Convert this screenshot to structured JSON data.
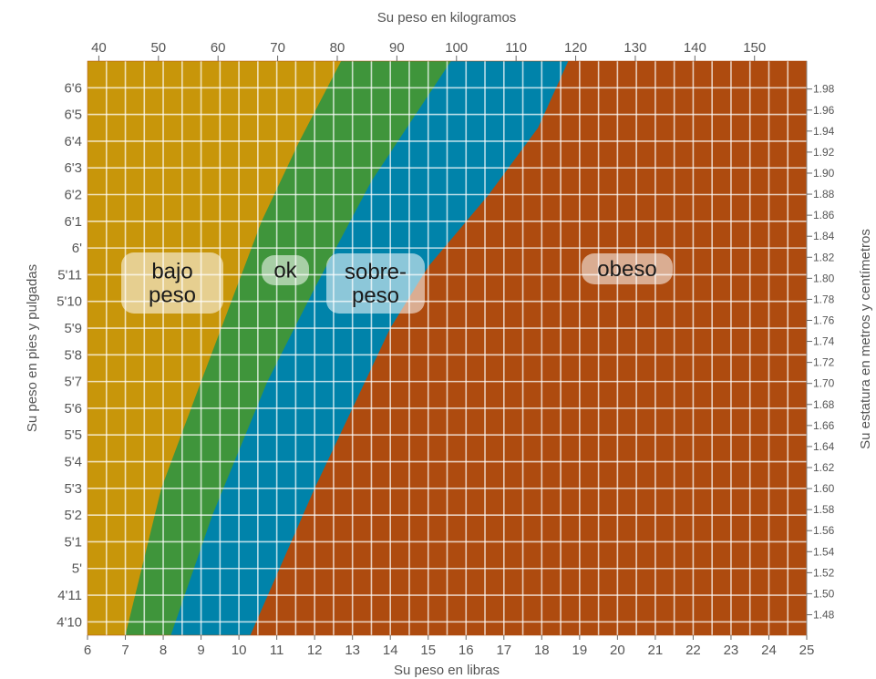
{
  "chart_data": {
    "type": "area",
    "x_bottom": {
      "label": "Su peso en libras",
      "ticks": [
        "6",
        "7",
        "8",
        "9",
        "10",
        "11",
        "12",
        "13",
        "14",
        "15",
        "16",
        "17",
        "18",
        "19",
        "20",
        "21",
        "22",
        "23",
        "24",
        "25"
      ],
      "range": [
        6,
        25
      ]
    },
    "x_top": {
      "label": "Su peso en kilogramos",
      "ticks": [
        "40",
        "50",
        "60",
        "70",
        "80",
        "90",
        "100",
        "110",
        "120",
        "130",
        "140",
        "150"
      ],
      "range": [
        40,
        158
      ]
    },
    "y_left": {
      "label": "Su peso en pies y pulgadas",
      "ticks": [
        "4'10",
        "4'11",
        "5'",
        "5'1",
        "5'2",
        "5'3",
        "5'4",
        "5'5",
        "5'6",
        "5'7",
        "5'8",
        "5'9",
        "5'10",
        "5'11",
        "6'",
        "6'1",
        "6'2",
        "6'3",
        "6'4",
        "6'5",
        "6'6"
      ],
      "range_in": [
        57.5,
        79
      ]
    },
    "y_right": {
      "label": "Su estatura en metros y centímetros",
      "ticks": [
        "1.48",
        "1.50",
        "1.52",
        "1.54",
        "1.56",
        "1.58",
        "1.60",
        "1.62",
        "1.64",
        "1.66",
        "1.68",
        "1.70",
        "1.72",
        "1.74",
        "1.76",
        "1.78",
        "1.80",
        "1.82",
        "1.84",
        "1.86",
        "1.88",
        "1.90",
        "1.92",
        "1.94",
        "1.96",
        "1.98"
      ],
      "range": [
        1.46,
        2.0
      ]
    },
    "regions": [
      {
        "label": "bajo\npeso",
        "label_lines": [
          "bajo",
          "peso"
        ],
        "color": "#C8960A"
      },
      {
        "label": "ok",
        "label_lines": [
          "ok"
        ],
        "color": "#3F953B"
      },
      {
        "label": "sobre-\npeso",
        "label_lines": [
          "sobre-",
          "peso"
        ],
        "color": "#0083AA"
      },
      {
        "label": "obeso",
        "label_lines": [
          "obeso"
        ],
        "color": "#AE4B0F"
      }
    ],
    "boundaries_stone": [
      {
        "between": [
          "bajo peso",
          "ok"
        ],
        "points": [
          [
            7.0,
            57.5
          ],
          [
            7.95,
            63.0
          ],
          [
            9.0,
            67.0
          ],
          [
            10.6,
            73.0
          ],
          [
            11.6,
            76.0
          ],
          [
            12.7,
            79.0
          ]
        ]
      },
      {
        "between": [
          "ok",
          "sobre-peso"
        ],
        "points": [
          [
            8.2,
            57.5
          ],
          [
            9.3,
            62.0
          ],
          [
            10.75,
            67.0
          ],
          [
            12.0,
            70.5
          ],
          [
            13.5,
            74.5
          ],
          [
            15.6,
            79.0
          ]
        ]
      },
      {
        "between": [
          "sobre-peso",
          "obeso"
        ],
        "points": [
          [
            10.3,
            57.5
          ],
          [
            12.0,
            63.0
          ],
          [
            14.0,
            69.0
          ],
          [
            15.0,
            71.3
          ],
          [
            16.6,
            74.0
          ],
          [
            17.9,
            76.5
          ],
          [
            18.7,
            79.0
          ]
        ]
      }
    ],
    "grid": true,
    "legend": "inline"
  }
}
